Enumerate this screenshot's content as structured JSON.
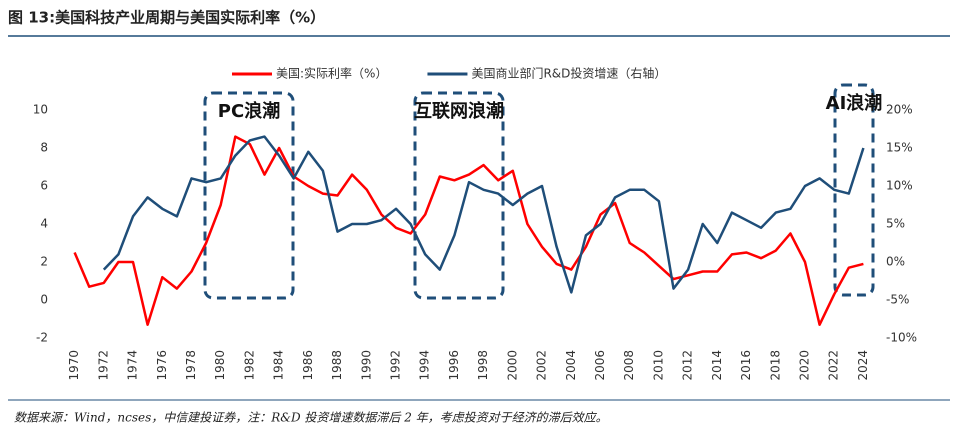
{
  "chart_data": {
    "type": "line",
    "title": "图 13:美国科技产业周期与美国实际利率（%）",
    "note": "数据来源：Wind，ncses，中信建投证券，注：R&D 投资增速数据滞后 2 年，考虑投资对于经济的滞后效应。",
    "annotations": [
      "PC浪潮",
      "互联网浪潮",
      "AI浪潮"
    ],
    "x": [
      1970,
      1971,
      1972,
      1973,
      1974,
      1975,
      1976,
      1977,
      1978,
      1979,
      1980,
      1981,
      1982,
      1983,
      1984,
      1985,
      1986,
      1987,
      1988,
      1989,
      1990,
      1991,
      1992,
      1993,
      1994,
      1995,
      1996,
      1997,
      1998,
      1999,
      2000,
      2001,
      2002,
      2003,
      2004,
      2005,
      2006,
      2007,
      2008,
      2009,
      2010,
      2011,
      2012,
      2013,
      2014,
      2015,
      2016,
      2017,
      2018,
      2019,
      2020,
      2021,
      2022,
      2023,
      2024
    ],
    "xlim": [
      1969,
      2025
    ],
    "xticks": [
      1970,
      1972,
      1974,
      1976,
      1978,
      1980,
      1982,
      1984,
      1986,
      1988,
      1990,
      1992,
      1994,
      1996,
      1998,
      2000,
      2002,
      2004,
      2006,
      2008,
      2010,
      2012,
      2014,
      2016,
      2018,
      2020,
      2022,
      2024
    ],
    "ylim": [
      -2,
      10
    ],
    "yticks": [
      -2,
      0,
      2,
      4,
      6,
      8,
      10
    ],
    "y2lim": [
      -10,
      20
    ],
    "y2ticks": [
      {
        "value": -10,
        "label": "-10%"
      },
      {
        "value": -5,
        "label": "-5%"
      },
      {
        "value": 0,
        "label": "0%"
      },
      {
        "value": 5,
        "label": "5%"
      },
      {
        "value": 10,
        "label": "10%"
      },
      {
        "value": 15,
        "label": "15%"
      },
      {
        "value": 20,
        "label": "20%"
      }
    ],
    "legend": "top",
    "series": [
      {
        "name": "美国:实际利率（%）",
        "color": "#ff0000",
        "values": [
          2.5,
          0.7,
          0.9,
          2.0,
          2.0,
          -1.3,
          1.2,
          0.6,
          1.5,
          3.0,
          5.0,
          8.6,
          8.2,
          6.6,
          8.0,
          6.5,
          6.0,
          5.6,
          5.5,
          6.6,
          5.8,
          4.5,
          3.8,
          3.5,
          4.5,
          6.5,
          6.3,
          6.6,
          7.1,
          6.3,
          6.8,
          4.0,
          2.8,
          1.9,
          1.6,
          2.8,
          4.5,
          5.1,
          3.0,
          2.5,
          1.8,
          1.1,
          1.3,
          1.5,
          1.5,
          2.4,
          2.5,
          2.2,
          2.6,
          3.5,
          2.0,
          -1.3,
          0.3,
          1.7,
          1.9
        ]
      },
      {
        "name": "美国商业部门R&D投资增速（右轴）",
        "color": "#1f4e79",
        "axis": "y2",
        "values": [
          null,
          null,
          -1,
          1,
          6,
          8.5,
          7,
          6,
          11,
          10.5,
          11,
          14,
          16,
          16.5,
          14,
          11,
          14.5,
          12,
          4,
          5,
          5,
          5.5,
          7,
          5,
          1,
          -1,
          3.5,
          10.5,
          9.5,
          9,
          7.5,
          9,
          10,
          2,
          -4,
          3.5,
          5,
          8.5,
          9.5,
          9.5,
          8,
          -3.5,
          -1,
          5,
          2.5,
          6.5,
          5.5,
          4.5,
          6.5,
          7,
          10,
          11,
          9.5,
          9,
          15
        ]
      }
    ]
  }
}
